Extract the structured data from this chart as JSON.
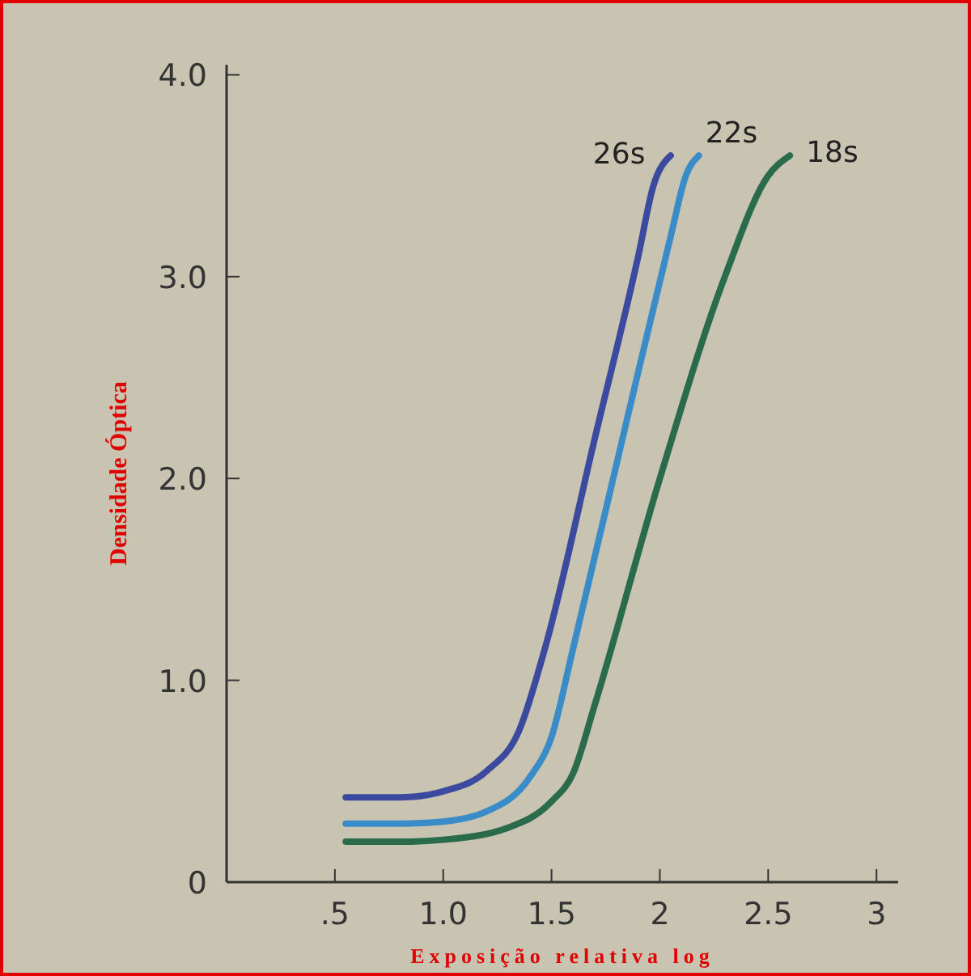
{
  "chart_data": {
    "type": "line",
    "xlabel": "Exposição relativa log",
    "ylabel": "Densidade Óptica",
    "xlim": [
      0,
      3.1
    ],
    "ylim": [
      0,
      4.05
    ],
    "xticks": [
      {
        "value": 0.5,
        "label": ".5"
      },
      {
        "value": 1,
        "label": "1.0"
      },
      {
        "value": 1.5,
        "label": "1.5"
      },
      2,
      2.5,
      3
    ],
    "yticks": [
      0,
      {
        "value": 1,
        "label": "1.0"
      },
      {
        "value": 2,
        "label": "2.0"
      },
      {
        "value": 3,
        "label": "3.0"
      },
      {
        "value": 4,
        "label": "4.0"
      }
    ],
    "grid": false,
    "marker": "none",
    "line_style": "solid",
    "series": [
      {
        "name": "26s",
        "color": "#3b4a9e",
        "x": [
          0.55,
          0.8,
          1.0,
          1.2,
          1.35,
          1.47,
          1.7,
          1.9,
          1.97,
          2.05
        ],
        "values": [
          0.42,
          0.42,
          0.45,
          0.55,
          0.75,
          1.16,
          2.2,
          3.1,
          3.45,
          3.6
        ]
      },
      {
        "name": "22s",
        "color": "#3a8cc8",
        "x": [
          0.55,
          0.8,
          1.0,
          1.2,
          1.4,
          1.5,
          1.6,
          1.85,
          2.05,
          2.12,
          2.18
        ],
        "values": [
          0.29,
          0.29,
          0.3,
          0.35,
          0.52,
          0.72,
          1.16,
          2.3,
          3.2,
          3.5,
          3.6
        ]
      },
      {
        "name": "18s",
        "color": "#2a6b4c",
        "x": [
          0.55,
          0.8,
          1.0,
          1.3,
          1.5,
          1.6,
          1.7,
          2.0,
          2.3,
          2.5,
          2.6
        ],
        "values": [
          0.2,
          0.2,
          0.21,
          0.27,
          0.4,
          0.54,
          0.88,
          2.0,
          3.0,
          3.5,
          3.6
        ]
      }
    ]
  }
}
